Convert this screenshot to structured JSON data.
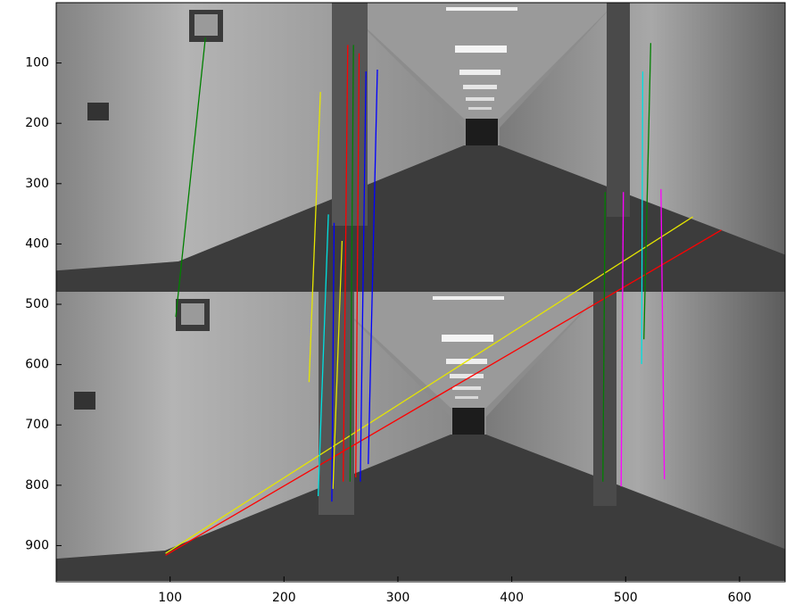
{
  "chart_data": {
    "type": "image-lines",
    "xlim": [
      0,
      640
    ],
    "ylim": [
      0,
      960
    ],
    "y_reversed": true,
    "xticks": [
      100,
      200,
      300,
      400,
      500,
      600
    ],
    "yticks": [
      100,
      200,
      300,
      400,
      500,
      600,
      700,
      800,
      900
    ],
    "series": [
      {
        "color": "#008000",
        "x": [
          131,
          105
        ],
        "values": [
          58,
          521
        ]
      },
      {
        "color": "#e6e600",
        "x": [
          96,
          559
        ],
        "values": [
          913,
          355
        ]
      },
      {
        "color": "#ff0000",
        "x": [
          96,
          584
        ],
        "values": [
          916,
          377
        ]
      },
      {
        "color": "#e6e600",
        "x": [
          232,
          222
        ],
        "values": [
          148,
          629
        ]
      },
      {
        "color": "#00e0e0",
        "x": [
          239,
          230
        ],
        "values": [
          351,
          818
        ]
      },
      {
        "color": "#0000ff",
        "x": [
          244,
          242
        ],
        "values": [
          365,
          827
        ]
      },
      {
        "color": "#e6e600",
        "x": [
          251,
          243
        ],
        "values": [
          395,
          806
        ]
      },
      {
        "color": "#ff0000",
        "x": [
          256,
          252
        ],
        "values": [
          70,
          794
        ]
      },
      {
        "color": "#008000",
        "x": [
          261,
          258
        ],
        "values": [
          70,
          794
        ]
      },
      {
        "color": "#ff0000",
        "x": [
          266,
          263
        ],
        "values": [
          84,
          787
        ]
      },
      {
        "color": "#0000ff",
        "x": [
          272,
          267
        ],
        "values": [
          114,
          794
        ]
      },
      {
        "color": "#0000ff",
        "x": [
          282,
          274
        ],
        "values": [
          111,
          765
        ]
      },
      {
        "color": "#008000",
        "x": [
          482,
          480
        ],
        "values": [
          314,
          794
        ]
      },
      {
        "color": "#ff00ff",
        "x": [
          498,
          496
        ],
        "values": [
          314,
          802
        ]
      },
      {
        "color": "#ff00ff",
        "x": [
          531,
          534
        ],
        "values": [
          309,
          790
        ]
      },
      {
        "color": "#00e0e0",
        "x": [
          515,
          514
        ],
        "values": [
          114,
          599
        ]
      },
      {
        "color": "#008000",
        "x": [
          522,
          516
        ],
        "values": [
          67,
          558
        ]
      }
    ]
  }
}
